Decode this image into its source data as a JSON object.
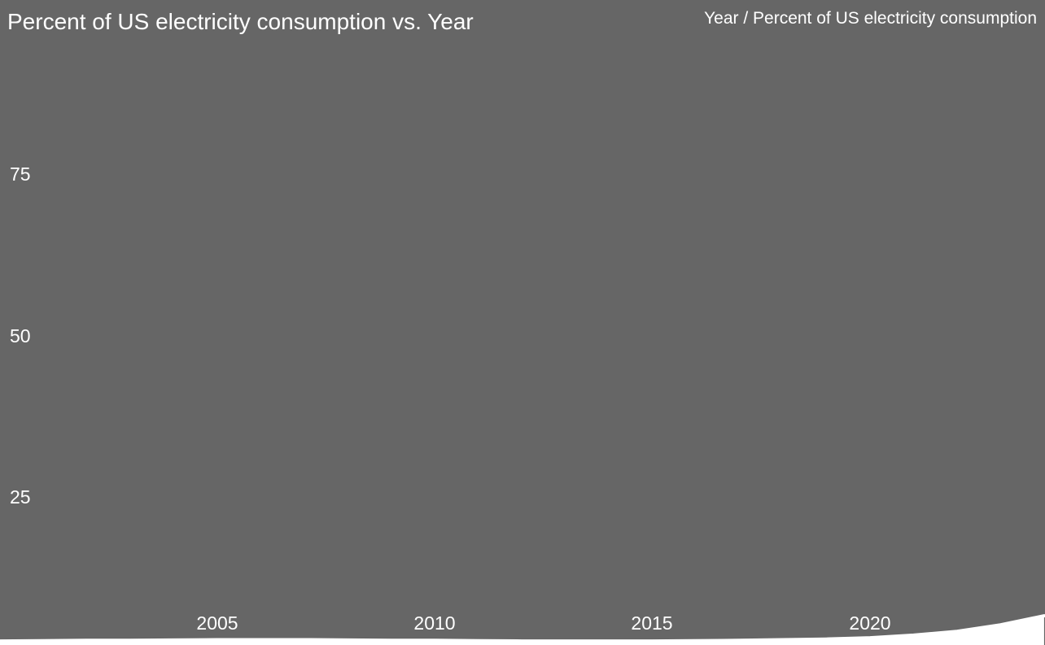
{
  "title": "Percent of US electricity consumption vs. Year",
  "legend": "Year / Percent of US electricity consumption",
  "colors": {
    "background": "#666666",
    "text": "#ffffff",
    "series": "#ffffff"
  },
  "axes": {
    "y_ticks": [
      "75",
      "50",
      "25"
    ],
    "x_ticks": [
      "2005",
      "2010",
      "2015",
      "2020"
    ]
  },
  "chart_data": {
    "type": "area",
    "title": "Percent of US electricity consumption vs. Year",
    "xlabel": "Year",
    "ylabel": "Percent of US electricity consumption",
    "x": [
      2000,
      2001,
      2002,
      2003,
      2004,
      2005,
      2006,
      2007,
      2008,
      2009,
      2010,
      2011,
      2012,
      2013,
      2014,
      2015,
      2016,
      2017,
      2018,
      2019,
      2020,
      2021,
      2022,
      2023,
      2024
    ],
    "values": [
      2.7,
      2.75,
      2.8,
      2.8,
      2.85,
      2.9,
      2.9,
      2.9,
      2.85,
      2.8,
      2.8,
      2.75,
      2.7,
      2.7,
      2.7,
      2.7,
      2.75,
      2.8,
      2.9,
      3.0,
      3.2,
      3.6,
      4.2,
      5.2,
      6.6
    ],
    "xlim": [
      2000,
      2024
    ],
    "ylim": [
      0,
      100
    ],
    "grid": false,
    "legend_position": "top-right",
    "series_color": "#ffffff",
    "background_color": "#666666"
  }
}
